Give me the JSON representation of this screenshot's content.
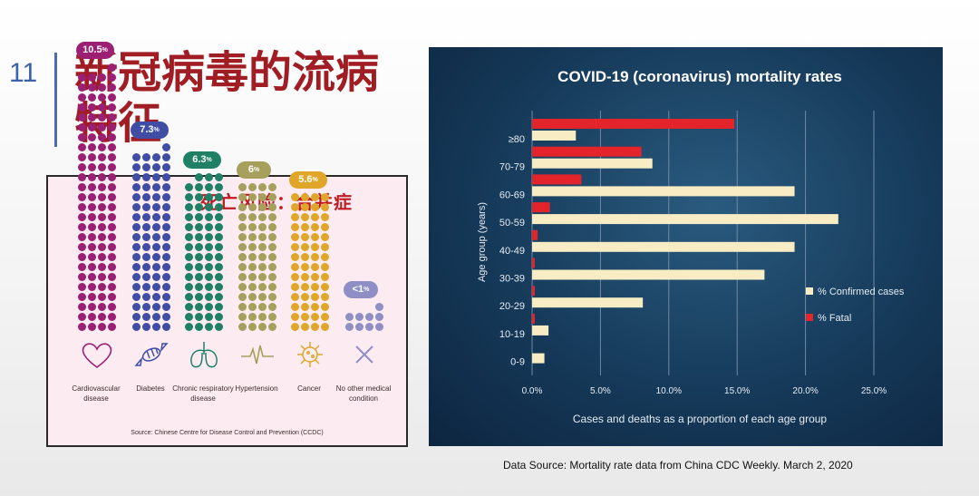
{
  "slide": {
    "number": "11",
    "title": "新冠病毒的流病特征"
  },
  "comorbidity": {
    "title": "死亡风险：合并症",
    "source": "Source: Chinese Centre for Disease Control and Prevention (CCDC)",
    "conditions": [
      {
        "label": "Cardiovascular disease",
        "value": "10.5",
        "unit": "%",
        "rate": 10.5,
        "color": "#9b1f73",
        "icon": "heart-icon"
      },
      {
        "label": "Diabetes",
        "value": "7.3",
        "unit": "%",
        "rate": 7.3,
        "color": "#3f4da4",
        "icon": "candy-icon"
      },
      {
        "label": "Chronic respiratory disease",
        "value": "6.3",
        "unit": "%",
        "rate": 6.3,
        "color": "#1f8066",
        "icon": "lungs-icon"
      },
      {
        "label": "Hypertension",
        "value": "6",
        "unit": "%",
        "rate": 6.0,
        "color": "#a6a05c",
        "icon": "heartbeat-icon"
      },
      {
        "label": "Cancer",
        "value": "5.6",
        "unit": "%",
        "rate": 5.6,
        "color": "#e0a629",
        "icon": "virus-icon"
      },
      {
        "label": "No other medical condition",
        "value": "<1",
        "unit": "%",
        "rate": 0.9,
        "color": "#8f8fc6",
        "icon": "cross-icon"
      }
    ]
  },
  "chart_data": {
    "type": "bar",
    "orientation": "horizontal",
    "title": "COVID-19 (coronavirus) mortality rates",
    "xlabel": "Cases and deaths as a proportion of each age group",
    "ylabel": "Age group (years)",
    "categories": [
      "≥80",
      "70-79",
      "60-69",
      "50-59",
      "40-49",
      "30-39",
      "20-29",
      "10-19",
      "0-9"
    ],
    "series": [
      {
        "name": "% Confirmed cases",
        "color": "#f7ecc4",
        "values": [
          3.2,
          8.8,
          19.2,
          22.4,
          19.2,
          17.0,
          8.1,
          1.2,
          0.9
        ]
      },
      {
        "name": "% Fatal",
        "color": "#e3242b",
        "values": [
          14.8,
          8.0,
          3.6,
          1.3,
          0.4,
          0.2,
          0.2,
          0.2,
          0.0
        ]
      }
    ],
    "xlim": [
      0,
      25
    ],
    "xticks": [
      "0.0%",
      "5.0%",
      "10.0%",
      "15.0%",
      "20.0%",
      "25.0%"
    ],
    "grid": true,
    "legend": "right"
  },
  "data_source": "Data Source: Mortality rate data from China CDC Weekly. March 2, 2020"
}
